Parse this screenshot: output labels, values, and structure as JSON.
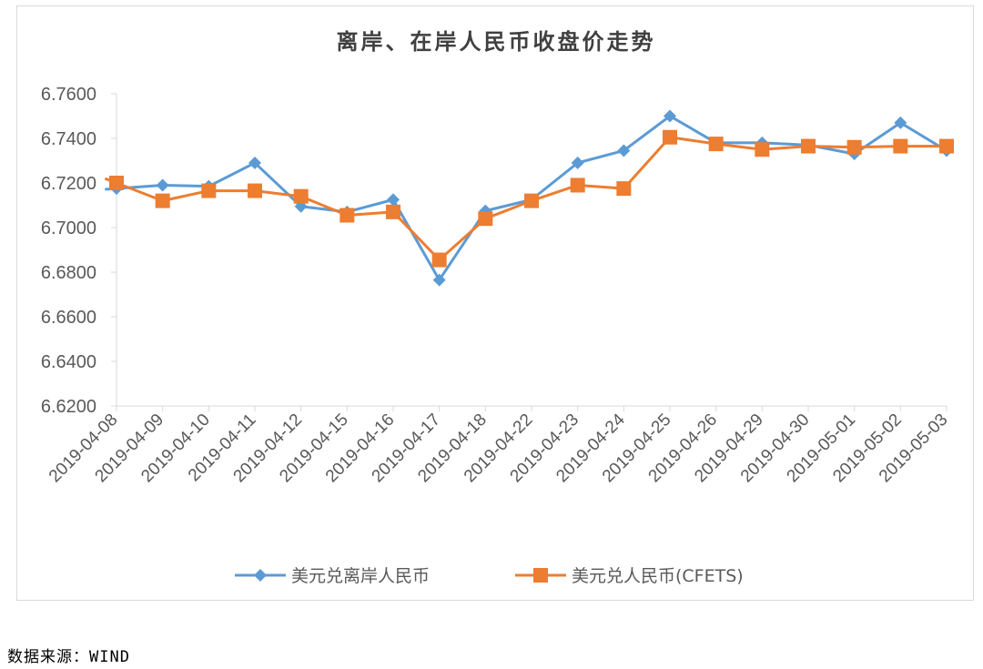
{
  "chart_data": {
    "type": "line",
    "title": "离岸、在岸人民币收盘价走势",
    "categories": [
      "2019-04-08",
      "2019-04-09",
      "2019-04-10",
      "2019-04-11",
      "2019-04-12",
      "2019-04-15",
      "2019-04-16",
      "2019-04-17",
      "2019-04-18",
      "2019-04-22",
      "2019-04-23",
      "2019-04-24",
      "2019-04-25",
      "2019-04-26",
      "2019-04-29",
      "2019-04-30",
      "2019-05-01",
      "2019-05-02",
      "2019-05-03"
    ],
    "y_ticks": [
      "6.6200",
      "6.6400",
      "6.6600",
      "6.6800",
      "6.7000",
      "6.7200",
      "6.7400",
      "6.7600"
    ],
    "ylim": [
      6.62,
      6.76
    ],
    "legend_position": "bottom",
    "grid": false,
    "series": [
      {
        "name": "美元兑离岸人民币",
        "color": "#5B9BD5",
        "marker": "diamond",
        "values": [
          6.7175,
          6.719,
          6.7185,
          6.729,
          6.7095,
          6.707,
          6.7125,
          6.6765,
          6.7075,
          6.7125,
          6.729,
          6.7345,
          6.75,
          6.738,
          6.738,
          6.737,
          6.733,
          6.747,
          6.7345
        ]
      },
      {
        "name": "美元兑人民币(CFETS)",
        "color": "#ED7D31",
        "marker": "square",
        "values": [
          6.72,
          6.712,
          6.7165,
          6.7165,
          6.714,
          6.7055,
          6.707,
          6.6855,
          6.704,
          6.712,
          6.719,
          6.7175,
          6.7405,
          6.7375,
          6.735,
          6.7365,
          6.736,
          6.7365,
          6.7365
        ]
      }
    ]
  },
  "source": {
    "label": "数据来源：",
    "value": "WIND"
  }
}
